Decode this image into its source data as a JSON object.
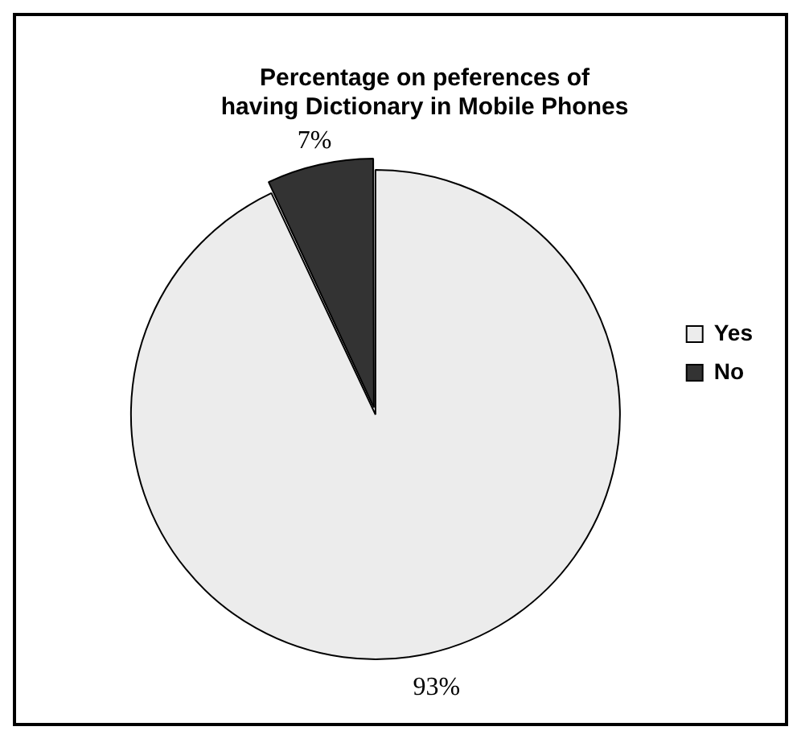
{
  "chart_data": {
    "type": "pie",
    "title": "Percentage on peferences of having Dictionary in Mobile Phones",
    "categories": [
      "Yes",
      "No"
    ],
    "values": [
      93,
      7
    ],
    "colors": [
      "#ececec",
      "#333333"
    ],
    "value_labels": [
      "93%",
      "7%"
    ],
    "legend": "right"
  }
}
